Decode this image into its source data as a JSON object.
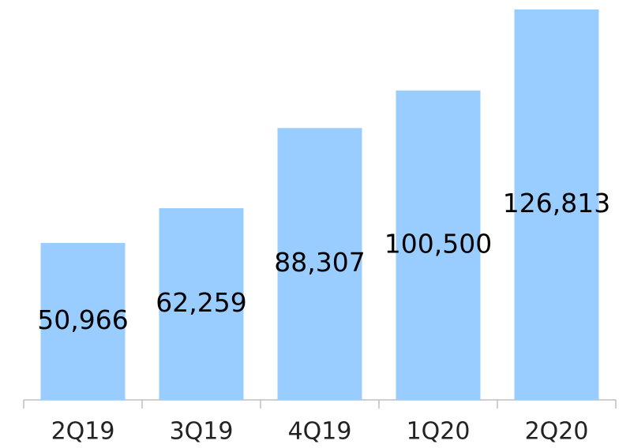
{
  "chart_data": {
    "type": "bar",
    "categories": [
      "2Q19",
      "3Q19",
      "4Q19",
      "1Q20",
      "2Q20"
    ],
    "values": [
      50966,
      62259,
      88307,
      100500,
      126813
    ],
    "value_labels": [
      "50,966",
      "62,259",
      "88,307",
      "100,500",
      "126,813"
    ],
    "color": "#99ccff"
  }
}
